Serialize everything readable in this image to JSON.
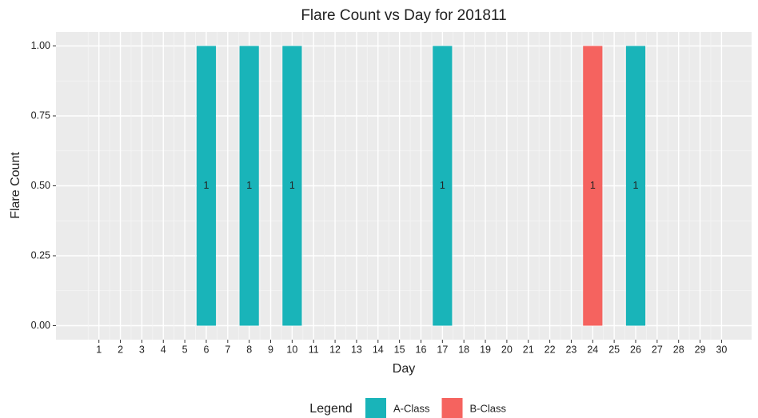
{
  "chart_data": {
    "type": "bar",
    "title": "Flare Count vs Day for 201811",
    "x_label": "Day",
    "y_label": "Flare Count",
    "xticks": [
      1,
      2,
      3,
      4,
      5,
      6,
      7,
      8,
      9,
      10,
      11,
      12,
      13,
      14,
      15,
      16,
      17,
      18,
      19,
      20,
      21,
      22,
      23,
      24,
      25,
      26,
      27,
      28,
      29,
      30
    ],
    "xlim": [
      -1,
      31.4
    ],
    "ylim": [
      -0.05,
      1.05
    ],
    "yticks": [
      {
        "value": 0,
        "label": "0.00"
      },
      {
        "value": 0.25,
        "label": "0.25"
      },
      {
        "value": 0.5,
        "label": "0.50"
      },
      {
        "value": 0.75,
        "label": "0.75"
      },
      {
        "value": 1,
        "label": "1.00"
      }
    ],
    "grid": true,
    "legend_title": "Legend",
    "legend_position": "bottom",
    "series": [
      {
        "name": "A-Class",
        "color": "#19b4b9",
        "x": [
          6,
          8,
          10,
          17,
          26
        ],
        "values": [
          1,
          1,
          1,
          1,
          1
        ]
      },
      {
        "name": "B-Class",
        "color": "#f5635f",
        "x": [
          24
        ],
        "values": [
          1
        ]
      }
    ]
  }
}
